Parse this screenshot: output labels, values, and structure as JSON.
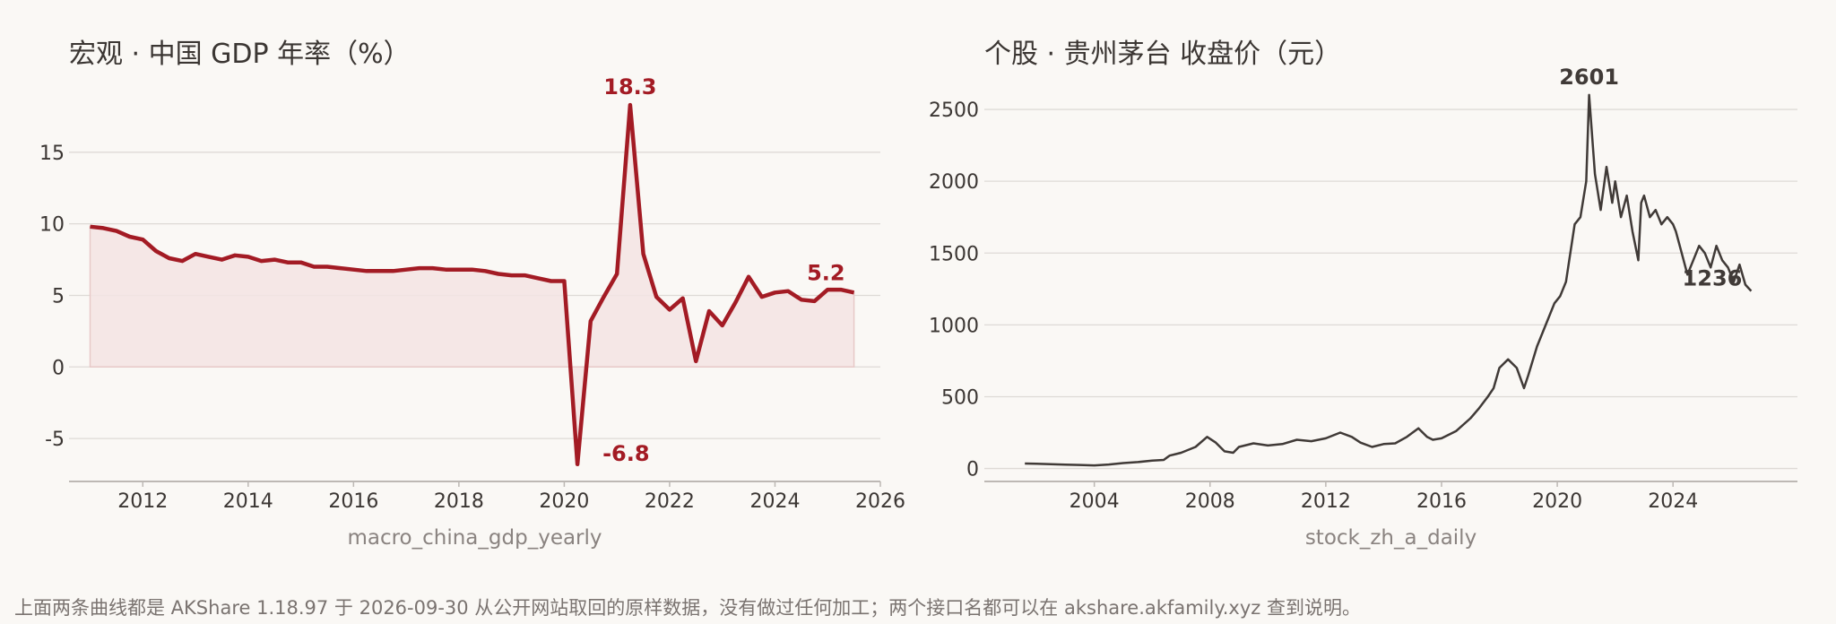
{
  "colors": {
    "background": "#faf8f5",
    "gdp_line": "#a31b24",
    "gdp_fill": "#f3e4e3",
    "stock_line": "#403a37",
    "grid": "#dedad6",
    "axis": "#bdb8b4",
    "title_text": "#3b3633",
    "tick_text": "#3b3633",
    "xlabel_text": "#8a8380"
  },
  "footnote": "上面两条曲线都是 AKShare 1.18.97 于 2026-09-30 从公开网站取回的原样数据，没有做过任何加工；两个接口名都可以在 akshare.akfamily.xyz 查到说明。",
  "chart_data": [
    {
      "type": "area",
      "title": "宏观 · 中国 GDP 年率（%）",
      "xlabel": "macro_china_gdp_yearly",
      "ylabel": "",
      "xlim": [
        2010.6,
        2026.0
      ],
      "ylim": [
        -8,
        20
      ],
      "xticks": [
        2012,
        2014,
        2016,
        2018,
        2020,
        2022,
        2024,
        2026
      ],
      "yticks": [
        -5,
        0,
        5,
        10,
        15
      ],
      "grid": true,
      "x": [
        2011.0,
        2011.25,
        2011.5,
        2011.75,
        2012.0,
        2012.25,
        2012.5,
        2012.75,
        2013.0,
        2013.25,
        2013.5,
        2013.75,
        2014.0,
        2014.25,
        2014.5,
        2014.75,
        2015.0,
        2015.25,
        2015.5,
        2015.75,
        2016.0,
        2016.25,
        2016.5,
        2016.75,
        2017.0,
        2017.25,
        2017.5,
        2017.75,
        2018.0,
        2018.25,
        2018.5,
        2018.75,
        2019.0,
        2019.25,
        2019.5,
        2019.75,
        2020.0,
        2020.25,
        2020.5,
        2020.75,
        2021.0,
        2021.25,
        2021.5,
        2021.75,
        2022.0,
        2022.25,
        2022.5,
        2022.75,
        2023.0,
        2023.25,
        2023.5,
        2023.75,
        2024.0,
        2024.25,
        2024.5,
        2024.75,
        2025.0,
        2025.25,
        2025.5
      ],
      "values": [
        9.8,
        9.7,
        9.5,
        9.1,
        8.9,
        8.1,
        7.6,
        7.4,
        7.9,
        7.7,
        7.5,
        7.8,
        7.7,
        7.4,
        7.5,
        7.3,
        7.3,
        7.0,
        7.0,
        6.9,
        6.8,
        6.7,
        6.7,
        6.7,
        6.8,
        6.9,
        6.9,
        6.8,
        6.8,
        6.8,
        6.7,
        6.5,
        6.4,
        6.4,
        6.2,
        6.0,
        6.0,
        -6.8,
        3.2,
        4.9,
        6.5,
        18.3,
        7.9,
        4.9,
        4.0,
        4.8,
        0.4,
        3.9,
        2.9,
        4.5,
        6.3,
        4.9,
        5.2,
        5.3,
        4.7,
        4.6,
        5.4,
        5.4,
        5.2
      ],
      "annotations": [
        {
          "x": 2021.25,
          "y": 18.3,
          "text": "18.3",
          "position": "above"
        },
        {
          "x": 2020.25,
          "y": -6.8,
          "text": "-6.8",
          "position": "right"
        },
        {
          "x": 2025.5,
          "y": 5.2,
          "text": "5.2",
          "position": "above-left"
        }
      ]
    },
    {
      "type": "line",
      "title": "个股 · 贵州茅台 收盘价（元）",
      "xlabel": "stock_zh_a_daily",
      "ylabel": "",
      "xlim": [
        2000.2,
        2028.3
      ],
      "ylim": [
        -90,
        2700
      ],
      "xticks": [
        2004,
        2008,
        2012,
        2016,
        2020,
        2024
      ],
      "yticks": [
        0,
        500,
        1000,
        1500,
        2000,
        2500
      ],
      "grid": true,
      "x": [
        2001.6,
        2002.0,
        2002.5,
        2003.0,
        2003.5,
        2004.0,
        2004.5,
        2005.0,
        2005.5,
        2006.0,
        2006.4,
        2006.6,
        2007.0,
        2007.5,
        2007.9,
        2008.2,
        2008.5,
        2008.8,
        2009.0,
        2009.5,
        2010.0,
        2010.5,
        2011.0,
        2011.5,
        2012.0,
        2012.5,
        2012.9,
        2013.2,
        2013.6,
        2014.0,
        2014.4,
        2014.8,
        2015.2,
        2015.5,
        2015.7,
        2016.0,
        2016.5,
        2017.0,
        2017.3,
        2017.6,
        2017.8,
        2018.0,
        2018.3,
        2018.6,
        2018.85,
        2019.0,
        2019.3,
        2019.6,
        2019.9,
        2020.1,
        2020.3,
        2020.6,
        2020.8,
        2021.0,
        2021.1,
        2021.3,
        2021.5,
        2021.7,
        2021.9,
        2022.0,
        2022.2,
        2022.4,
        2022.6,
        2022.8,
        2022.9,
        2023.0,
        2023.2,
        2023.4,
        2023.6,
        2023.8,
        2024.0,
        2024.1,
        2024.3,
        2024.5,
        2024.7,
        2024.9,
        2025.1,
        2025.3,
        2025.5,
        2025.7,
        2025.9,
        2026.1,
        2026.3,
        2026.5,
        2026.7
      ],
      "values": [
        35,
        33,
        30,
        27,
        25,
        22,
        28,
        38,
        45,
        55,
        60,
        90,
        110,
        150,
        220,
        180,
        120,
        110,
        150,
        175,
        160,
        170,
        200,
        190,
        210,
        250,
        220,
        180,
        150,
        170,
        175,
        220,
        280,
        220,
        200,
        210,
        260,
        350,
        420,
        500,
        560,
        700,
        760,
        700,
        560,
        650,
        850,
        1000,
        1150,
        1200,
        1300,
        1700,
        1750,
        2000,
        2601,
        2050,
        1800,
        2100,
        1850,
        2000,
        1750,
        1900,
        1650,
        1450,
        1850,
        1900,
        1750,
        1800,
        1700,
        1750,
        1700,
        1650,
        1500,
        1350,
        1450,
        1550,
        1500,
        1400,
        1550,
        1450,
        1400,
        1300,
        1420,
        1280,
        1236
      ],
      "annotations": [
        {
          "x": 2021.1,
          "y": 2601,
          "text": "2601",
          "position": "above"
        },
        {
          "x": 2026.7,
          "y": 1236,
          "text": "1236",
          "position": "left-above"
        }
      ]
    }
  ]
}
